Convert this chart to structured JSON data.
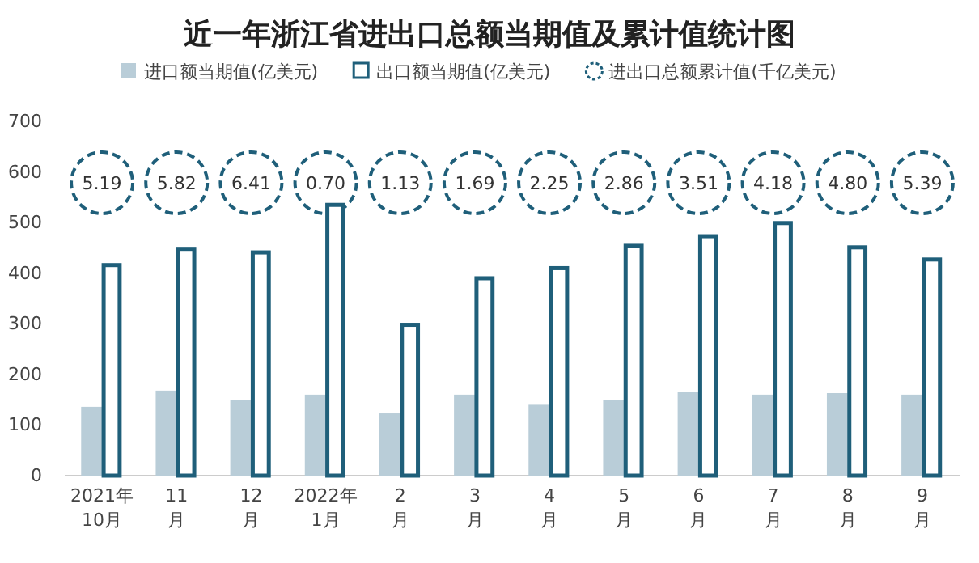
{
  "chart_data": {
    "type": "bar",
    "title": "近一年浙江省进出口总额当期值及累计值统计图",
    "categories": [
      "2021年\n10月",
      "11\n月",
      "12\n月",
      "2022年\n1月",
      "2\n月",
      "3\n月",
      "4\n月",
      "5\n月",
      "6\n月",
      "7\n月",
      "8\n月",
      "9\n月"
    ],
    "series": [
      {
        "name": "进口额当期值(亿美元)",
        "color": "#b9cdd8",
        "values": [
          136,
          168,
          149,
          160,
          123,
          160,
          140,
          150,
          166,
          160,
          163,
          160
        ]
      },
      {
        "name": "出口额当期值(亿美元)",
        "color": "#1f5f7a",
        "values": [
          416,
          448,
          441,
          535,
          298,
          390,
          410,
          454,
          473,
          499,
          451,
          427
        ]
      }
    ],
    "annotations": [
      "进出口总额累计值(千亿美元)",
      {
        "text": "5.19",
        "x": "2021年\n10月"
      },
      {
        "text": "5.82",
        "x": "11\n月"
      },
      {
        "text": "6.41",
        "x": "12\n月"
      },
      {
        "text": "0.70",
        "x": "2022年\n1月"
      },
      {
        "text": "1.13",
        "x": "2\n月"
      },
      {
        "text": "1.69",
        "x": "3\n月"
      },
      {
        "text": "2.25",
        "x": "4\n月"
      },
      {
        "text": "2.86",
        "x": "5\n月"
      },
      {
        "text": "3.51",
        "x": "6\n月"
      },
      {
        "text": "4.18",
        "x": "7\n月"
      },
      {
        "text": "4.80",
        "x": "8\n月"
      },
      {
        "text": "5.39",
        "x": "9\n月"
      }
    ],
    "ylim": [
      0,
      700
    ],
    "yticks": [
      0,
      100,
      200,
      300,
      400,
      500,
      600,
      700
    ],
    "grid": false,
    "legend": "top"
  }
}
